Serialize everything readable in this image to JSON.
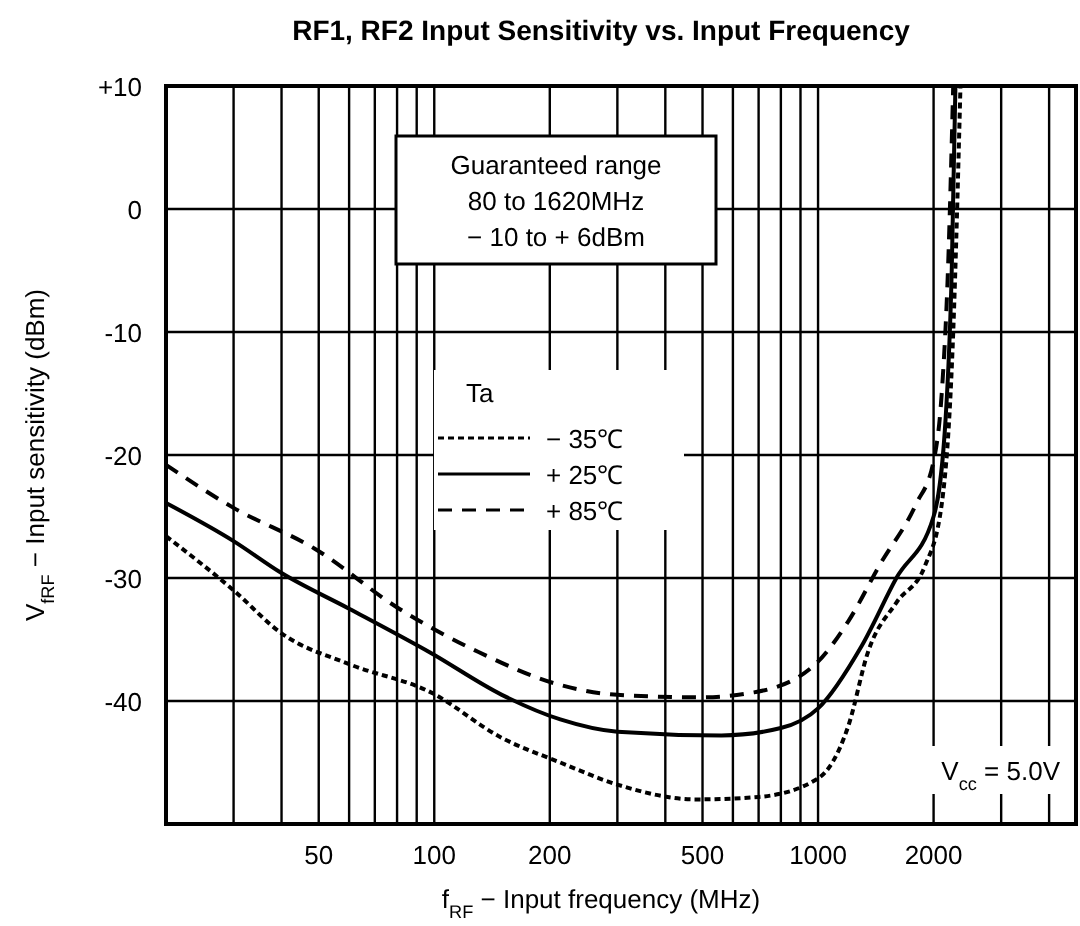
{
  "chart_data": {
    "type": "line",
    "title": "RF1, RF2 Input Sensitivity vs. Input Frequency",
    "xlabel": "f$_{RF}$ − Input frequency  (MHz)",
    "ylabel": "V$_{fRF}$ − Input sensitivity  (dBm)",
    "log": "x",
    "xlim": [
      20,
      4700
    ],
    "ylim": [
      -50,
      10
    ],
    "xticks": [
      {
        "value": 30,
        "label": null
      },
      {
        "value": 40,
        "label": null
      },
      50,
      {
        "value": 60,
        "label": null
      },
      {
        "value": 70,
        "label": null
      },
      {
        "value": 80,
        "label": null
      },
      {
        "value": 90,
        "label": null
      },
      100,
      200,
      {
        "value": 300,
        "label": null
      },
      {
        "value": 400,
        "label": null
      },
      500,
      {
        "value": 600,
        "label": null
      },
      {
        "value": 700,
        "label": null
      },
      {
        "value": 800,
        "label": null
      },
      {
        "value": 900,
        "label": null
      },
      1000,
      2000,
      {
        "value": 3000,
        "label": null
      },
      {
        "value": 4000,
        "label": null
      }
    ],
    "yticks": [
      {
        "value": 10,
        "label": "+10"
      },
      0,
      -10,
      -20,
      -30,
      -40
    ],
    "grid": true,
    "legend": "left",
    "legend_title": "Ta",
    "series": [
      {
        "name": "− 35℃",
        "color": "#000000",
        "line_style": "dotted",
        "x": [
          20,
          30,
          40,
          60,
          98,
          150,
          213,
          300,
          480,
          700,
          1000,
          1200,
          1350,
          1600,
          1900,
          2100,
          2250,
          2350
        ],
        "values": [
          -26.6,
          -31,
          -34.5,
          -37,
          -39.3,
          -43,
          -45,
          -46.8,
          -48,
          -47.8,
          -46.3,
          -42,
          -36,
          -32,
          -29,
          -24,
          -10,
          10
        ]
      },
      {
        "name": "+ 25℃",
        "color": "#000000",
        "line_style": "solid",
        "x": [
          20,
          30,
          40,
          60,
          98,
          150,
          213,
          300,
          560,
          800,
          1000,
          1300,
          1600,
          2000,
          2150,
          2230,
          2280
        ],
        "values": [
          -23.9,
          -27,
          -29.6,
          -32.5,
          -36.1,
          -39.5,
          -41.5,
          -42.5,
          -42.8,
          -42.2,
          -40.6,
          -35.5,
          -30,
          -25,
          -17,
          -5,
          10
        ]
      },
      {
        "name": "+ 85℃",
        "color": "#000000",
        "line_style": "dashed",
        "x": [
          20,
          30,
          48.7,
          81,
          130,
          213,
          300,
          493,
          681,
          977,
          1200,
          1450,
          1800,
          2000,
          2100,
          2180,
          2250
        ],
        "values": [
          -20.8,
          -24.3,
          -27.6,
          -32.5,
          -36,
          -38.7,
          -39.5,
          -39.7,
          -39.3,
          -37.1,
          -33.5,
          -28.9,
          -24,
          -20.5,
          -15,
          -5,
          10
        ]
      }
    ],
    "annotations": [
      "Guaranteed range\n80 to 1620MHz\n− 10 to + 6dBm",
      "V$_{cc}$ = 5.0V"
    ]
  }
}
